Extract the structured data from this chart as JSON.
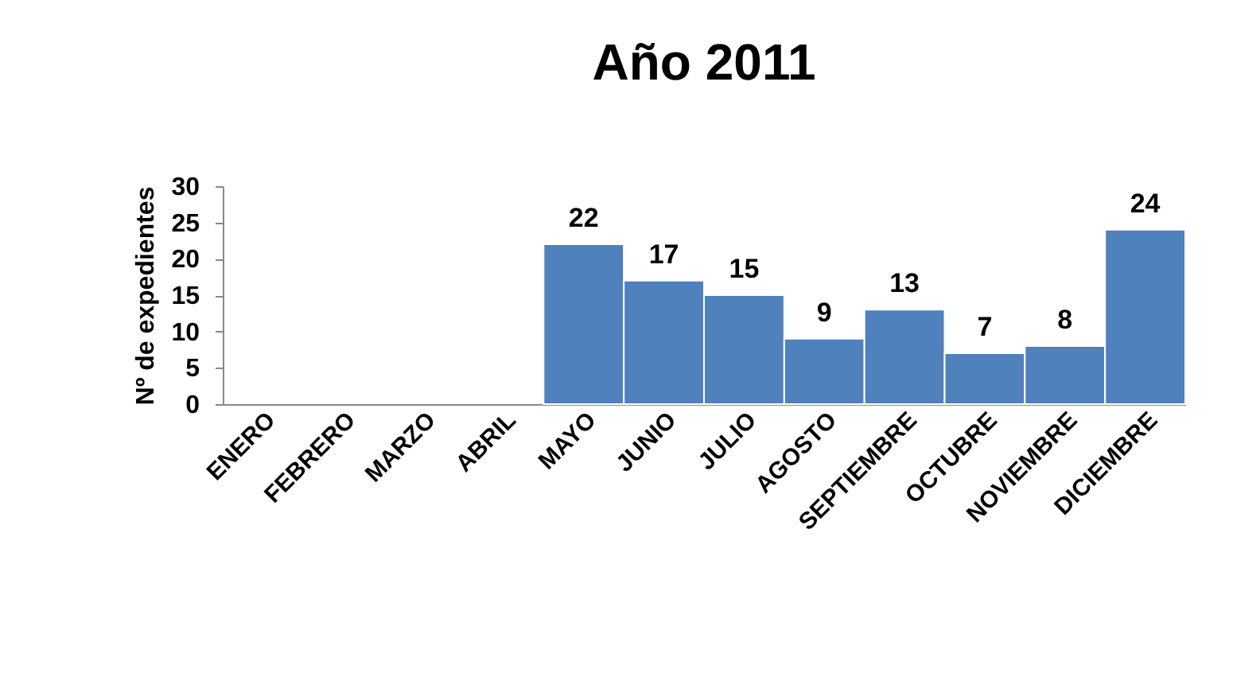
{
  "chart_data": {
    "type": "bar",
    "title": "Año 2011",
    "ylabel": "Nº de expedientes",
    "categories": [
      "ENERO",
      "FEBRERO",
      "MARZO",
      "ABRIL",
      "MAYO",
      "JUNIO",
      "JULIO",
      "AGOSTO",
      "SEPTIEMBRE",
      "OCTUBRE",
      "NOVIEMBRE",
      "DICIEMBRE"
    ],
    "values": [
      null,
      null,
      null,
      null,
      22,
      17,
      15,
      9,
      13,
      7,
      8,
      24
    ],
    "value_labels": [
      null,
      null,
      null,
      null,
      "22",
      "17",
      "15",
      "9",
      "13",
      "7",
      "8",
      "24"
    ],
    "color": "#4f81bd",
    "ylim": [
      0,
      30
    ],
    "yticks": [
      0,
      5,
      10,
      15,
      20,
      25,
      30
    ],
    "grid": false
  }
}
